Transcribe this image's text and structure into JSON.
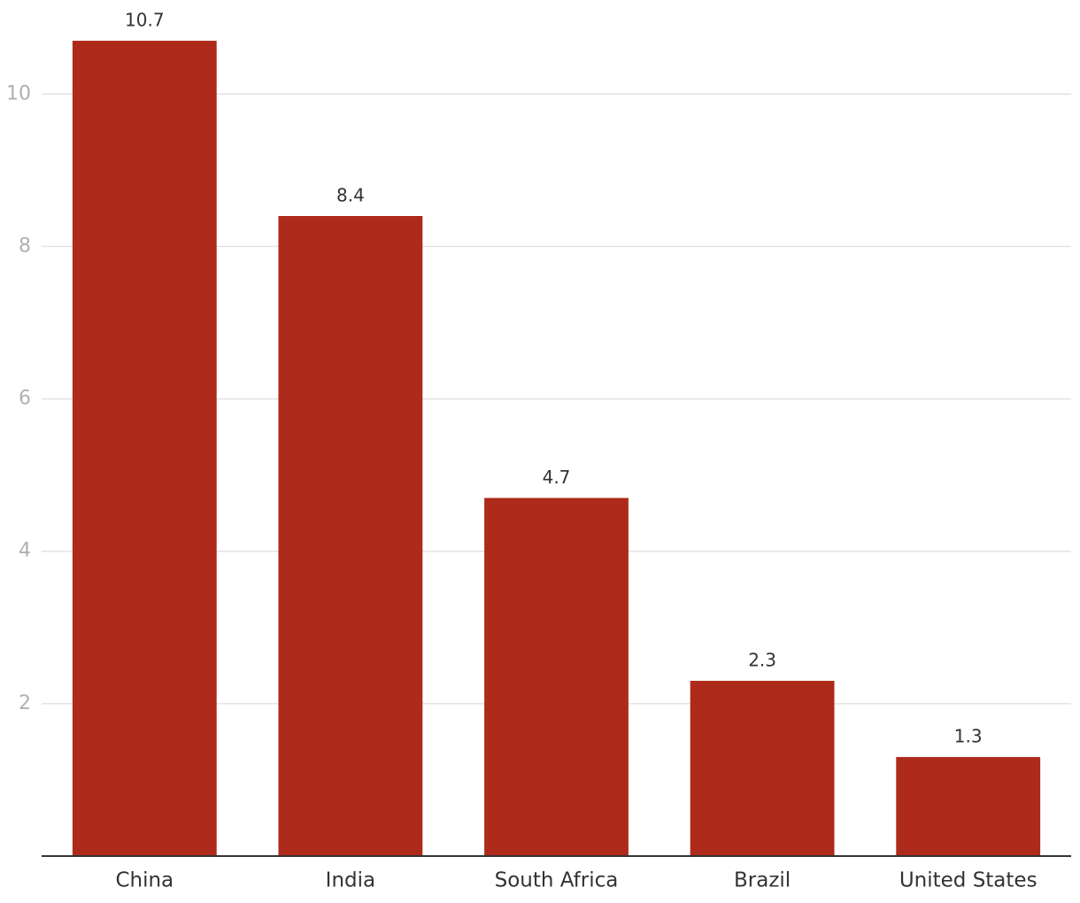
{
  "chart_data": {
    "type": "bar",
    "categories": [
      "China",
      "India",
      "South Africa",
      "Brazil",
      "United States"
    ],
    "values": [
      10.7,
      8.4,
      4.7,
      2.3,
      1.3
    ],
    "color": "#ae2a1a",
    "ylim": [
      0,
      11.2
    ],
    "yticks": [
      2,
      4,
      6,
      8,
      10
    ],
    "grid": true
  }
}
